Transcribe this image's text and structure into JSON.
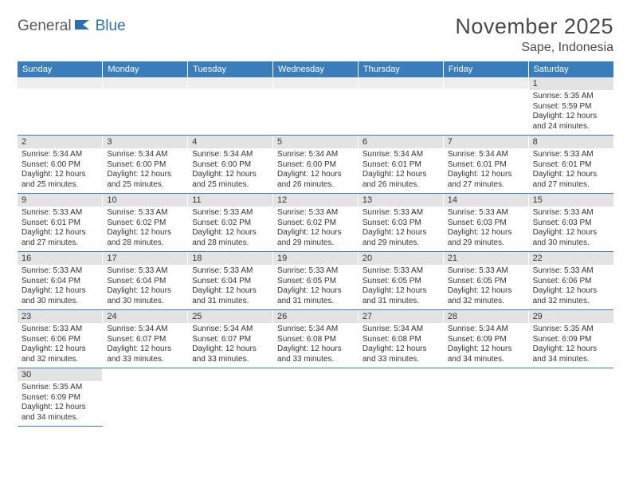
{
  "colors": {
    "header_bg": "#3a7dbc",
    "header_text": "#ffffff",
    "daynum_bg": "#e3e3e3",
    "rule": "#3a7dbc",
    "logo_gray": "#5a5a5a",
    "logo_blue": "#2f6faf"
  },
  "logo": {
    "part1": "General",
    "part2": "Blue"
  },
  "title": "November 2025",
  "location": "Sape, Indonesia",
  "weekdays": [
    "Sunday",
    "Monday",
    "Tuesday",
    "Wednesday",
    "Thursday",
    "Friday",
    "Saturday"
  ],
  "cells": {
    "d1": {
      "n": "1",
      "rise": "5:35 AM",
      "set": "5:59 PM",
      "dlh": "12",
      "dlm": "24"
    },
    "d2": {
      "n": "2",
      "rise": "5:34 AM",
      "set": "6:00 PM",
      "dlh": "12",
      "dlm": "25"
    },
    "d3": {
      "n": "3",
      "rise": "5:34 AM",
      "set": "6:00 PM",
      "dlh": "12",
      "dlm": "25"
    },
    "d4": {
      "n": "4",
      "rise": "5:34 AM",
      "set": "6:00 PM",
      "dlh": "12",
      "dlm": "25"
    },
    "d5": {
      "n": "5",
      "rise": "5:34 AM",
      "set": "6:00 PM",
      "dlh": "12",
      "dlm": "26"
    },
    "d6": {
      "n": "6",
      "rise": "5:34 AM",
      "set": "6:01 PM",
      "dlh": "12",
      "dlm": "26"
    },
    "d7": {
      "n": "7",
      "rise": "5:34 AM",
      "set": "6:01 PM",
      "dlh": "12",
      "dlm": "27"
    },
    "d8": {
      "n": "8",
      "rise": "5:33 AM",
      "set": "6:01 PM",
      "dlh": "12",
      "dlm": "27"
    },
    "d9": {
      "n": "9",
      "rise": "5:33 AM",
      "set": "6:01 PM",
      "dlh": "12",
      "dlm": "27"
    },
    "d10": {
      "n": "10",
      "rise": "5:33 AM",
      "set": "6:02 PM",
      "dlh": "12",
      "dlm": "28"
    },
    "d11": {
      "n": "11",
      "rise": "5:33 AM",
      "set": "6:02 PM",
      "dlh": "12",
      "dlm": "28"
    },
    "d12": {
      "n": "12",
      "rise": "5:33 AM",
      "set": "6:02 PM",
      "dlh": "12",
      "dlm": "29"
    },
    "d13": {
      "n": "13",
      "rise": "5:33 AM",
      "set": "6:03 PM",
      "dlh": "12",
      "dlm": "29"
    },
    "d14": {
      "n": "14",
      "rise": "5:33 AM",
      "set": "6:03 PM",
      "dlh": "12",
      "dlm": "29"
    },
    "d15": {
      "n": "15",
      "rise": "5:33 AM",
      "set": "6:03 PM",
      "dlh": "12",
      "dlm": "30"
    },
    "d16": {
      "n": "16",
      "rise": "5:33 AM",
      "set": "6:04 PM",
      "dlh": "12",
      "dlm": "30"
    },
    "d17": {
      "n": "17",
      "rise": "5:33 AM",
      "set": "6:04 PM",
      "dlh": "12",
      "dlm": "30"
    },
    "d18": {
      "n": "18",
      "rise": "5:33 AM",
      "set": "6:04 PM",
      "dlh": "12",
      "dlm": "31"
    },
    "d19": {
      "n": "19",
      "rise": "5:33 AM",
      "set": "6:05 PM",
      "dlh": "12",
      "dlm": "31"
    },
    "d20": {
      "n": "20",
      "rise": "5:33 AM",
      "set": "6:05 PM",
      "dlh": "12",
      "dlm": "31"
    },
    "d21": {
      "n": "21",
      "rise": "5:33 AM",
      "set": "6:05 PM",
      "dlh": "12",
      "dlm": "32"
    },
    "d22": {
      "n": "22",
      "rise": "5:33 AM",
      "set": "6:06 PM",
      "dlh": "12",
      "dlm": "32"
    },
    "d23": {
      "n": "23",
      "rise": "5:33 AM",
      "set": "6:06 PM",
      "dlh": "12",
      "dlm": "32"
    },
    "d24": {
      "n": "24",
      "rise": "5:34 AM",
      "set": "6:07 PM",
      "dlh": "12",
      "dlm": "33"
    },
    "d25": {
      "n": "25",
      "rise": "5:34 AM",
      "set": "6:07 PM",
      "dlh": "12",
      "dlm": "33"
    },
    "d26": {
      "n": "26",
      "rise": "5:34 AM",
      "set": "6:08 PM",
      "dlh": "12",
      "dlm": "33"
    },
    "d27": {
      "n": "27",
      "rise": "5:34 AM",
      "set": "6:08 PM",
      "dlh": "12",
      "dlm": "33"
    },
    "d28": {
      "n": "28",
      "rise": "5:34 AM",
      "set": "6:09 PM",
      "dlh": "12",
      "dlm": "34"
    },
    "d29": {
      "n": "29",
      "rise": "5:35 AM",
      "set": "6:09 PM",
      "dlh": "12",
      "dlm": "34"
    },
    "d30": {
      "n": "30",
      "rise": "5:35 AM",
      "set": "6:09 PM",
      "dlh": "12",
      "dlm": "34"
    }
  },
  "labels": {
    "sunrise": "Sunrise:",
    "sunset": "Sunset:",
    "daylight": "Daylight:",
    "hours": "hours",
    "and": "and",
    "minutes": "minutes."
  }
}
